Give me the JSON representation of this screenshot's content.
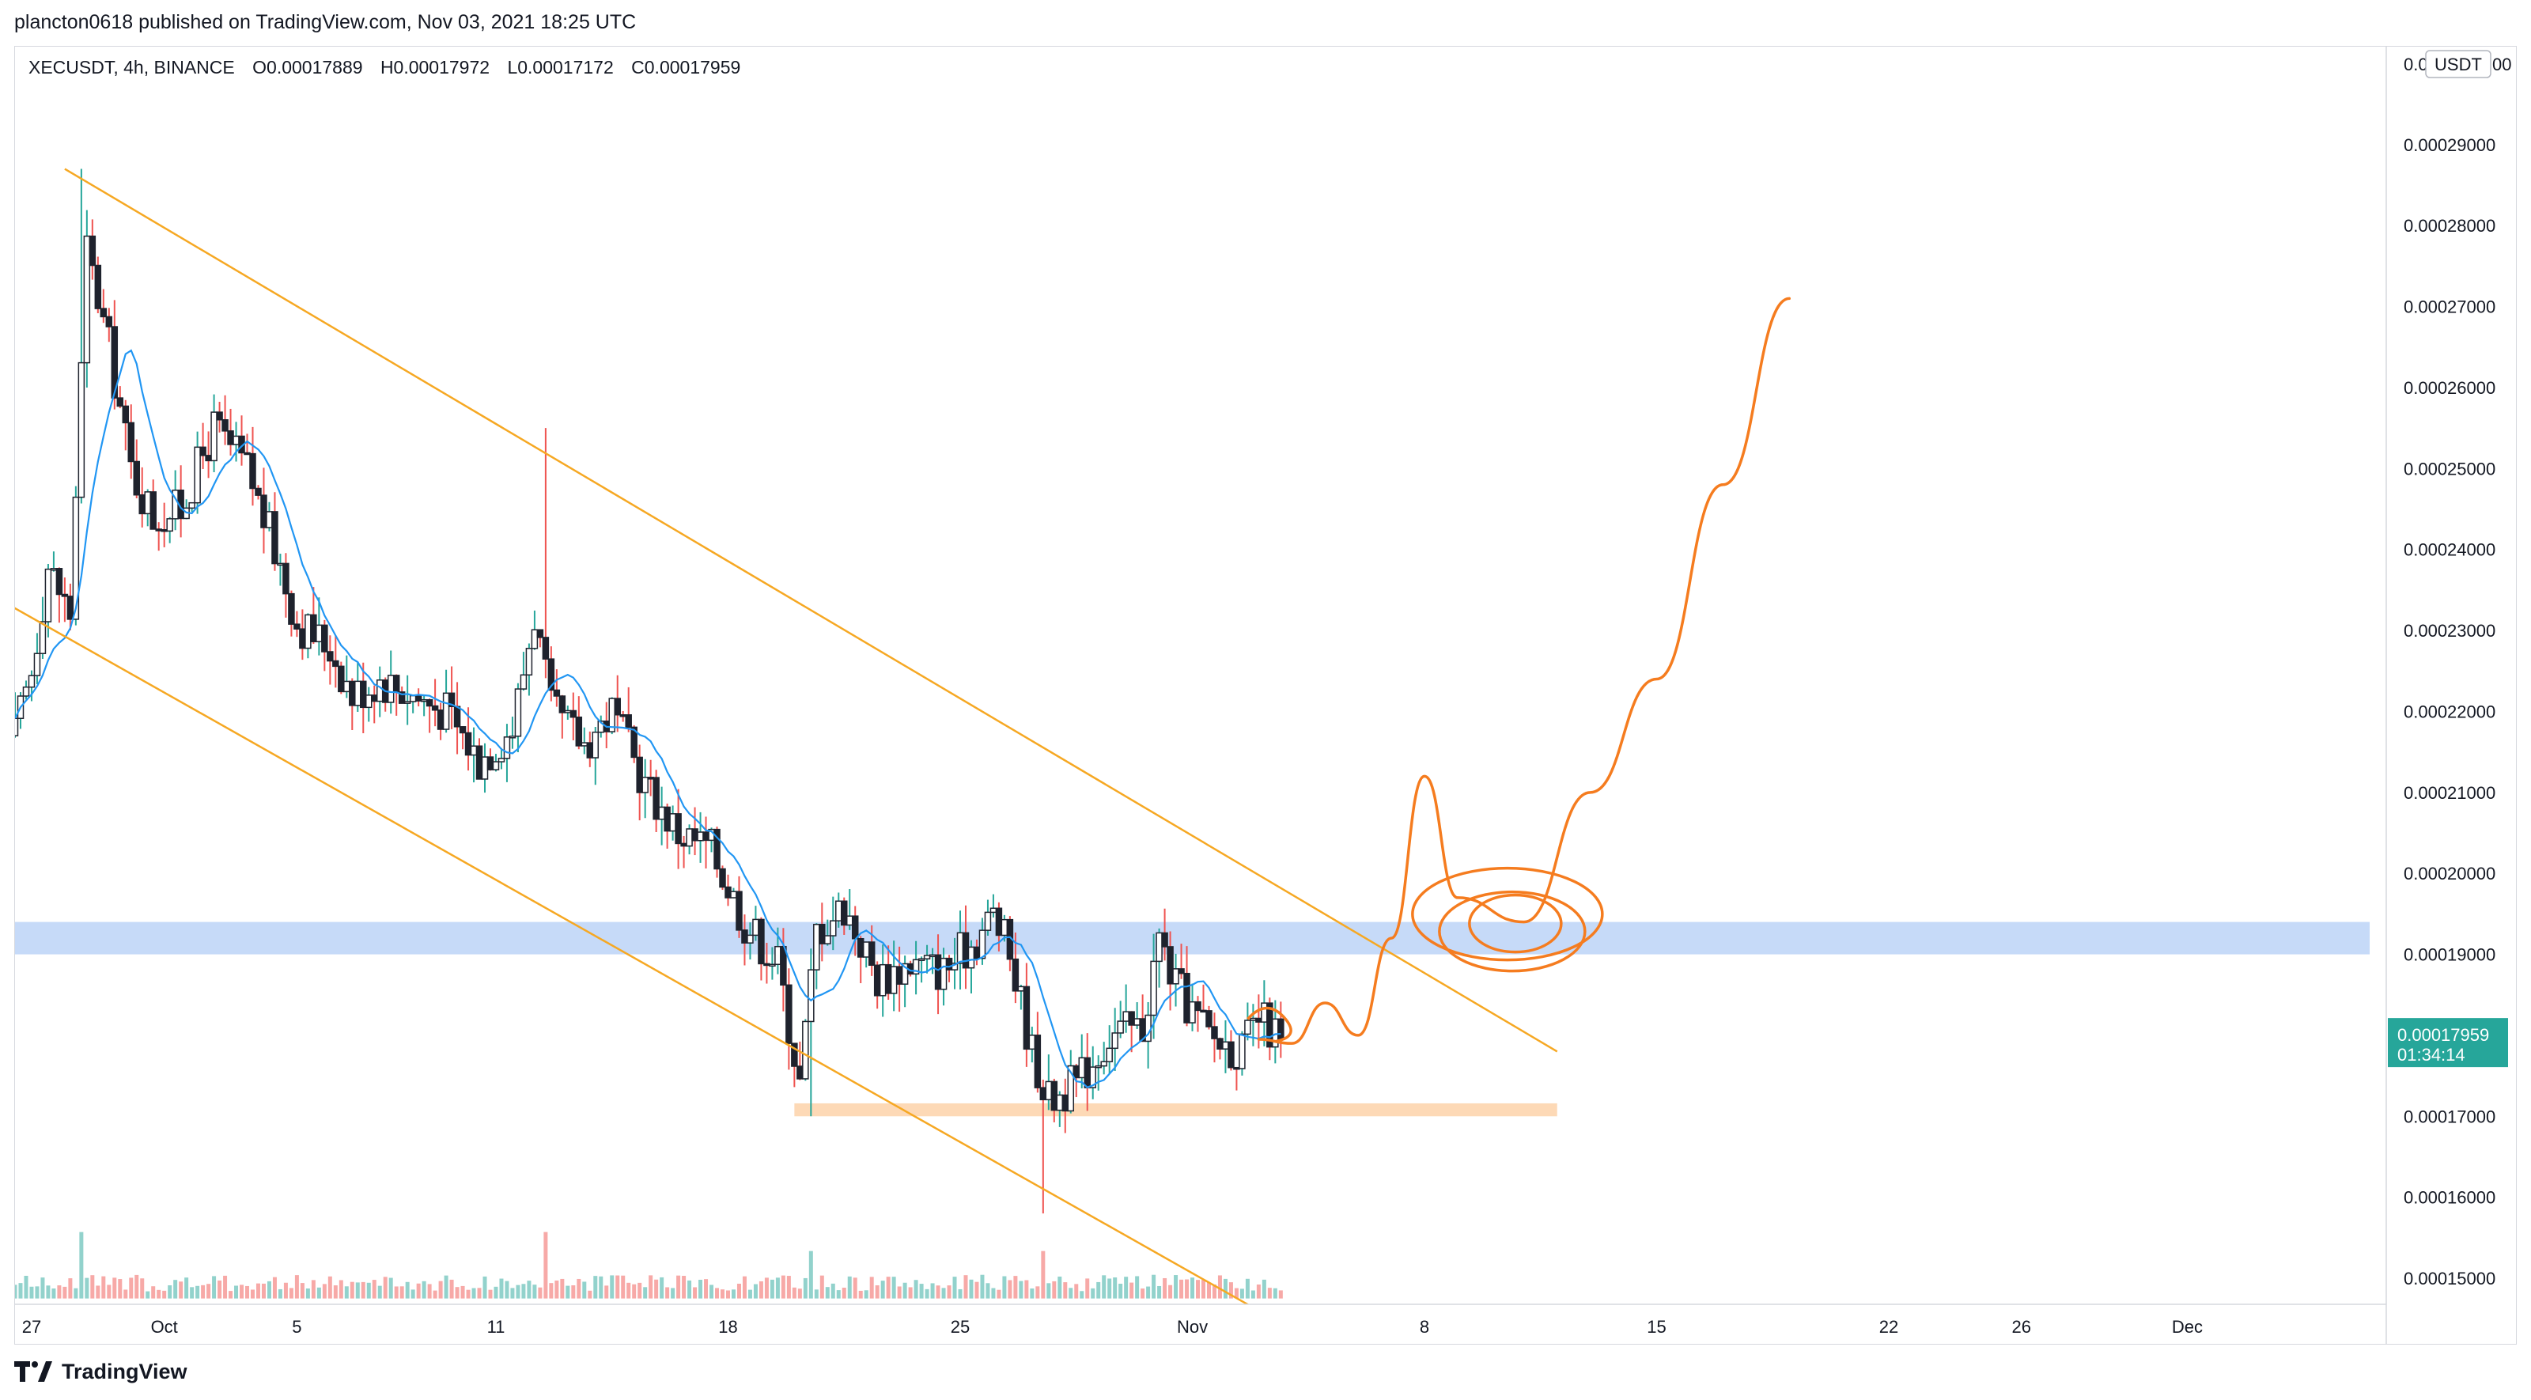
{
  "header": {
    "publisher": "plancton0618 published on TradingView.com, Nov 03, 2021 18:25 UTC"
  },
  "symbol_bar": {
    "symbol": "XECUSDT, 4h, BINANCE",
    "open": "O0.00017889",
    "high": "H0.00017972",
    "low": "L0.00017172",
    "close": "C0.00017959"
  },
  "currency_badge": "USDT",
  "price_badge": {
    "price": "0.00017959",
    "countdown": "01:34:14"
  },
  "footer": {
    "brand": "TradingView"
  },
  "colors": {
    "up": "#26a69a",
    "down": "#ef5350",
    "candle_body": "#1e222d",
    "ma": "#2196f3",
    "channel": "#f6a823",
    "projection": "#f57c1f",
    "resistance_zone": "#bcd3f7",
    "support_zone": "#fdd5ae",
    "badge": "#26a69a"
  },
  "chart_data": {
    "type": "candlestick",
    "symbol": "XECUSDT",
    "interval": "4h",
    "exchange": "BINANCE",
    "price_axis": {
      "range": [
        0.000146,
        0.000302
      ],
      "ticks": [
        "0.00015000",
        "0.00016000",
        "0.00017000",
        "0.00018000",
        "0.00019000",
        "0.00020000",
        "0.00021000",
        "0.00022000",
        "0.00023000",
        "0.00024000",
        "0.00025000",
        "0.00026000",
        "0.00027000",
        "0.00028000",
        "0.00029000"
      ],
      "top_label": "0.0",
      "top_label_suffix": "00"
    },
    "time_axis": {
      "labels": [
        "27",
        "Oct",
        "5",
        "11",
        "18",
        "25",
        "Nov",
        "8",
        "15",
        "22",
        "26",
        "Dec"
      ],
      "label_dates": [
        "2021-09-27",
        "2021-10-01",
        "2021-10-05",
        "2021-10-11",
        "2021-10-18",
        "2021-10-25",
        "2021-11-01",
        "2021-11-08",
        "2021-11-15",
        "2021-11-22",
        "2021-11-26",
        "2021-12-01"
      ],
      "start": "2021-09-26T12:00",
      "end": "2021-12-07T00:00"
    },
    "series": [
      {
        "name": "price",
        "kind": "ohlc",
        "bars_per_day": 6,
        "first_bar": "2021-09-26T12:00",
        "last_bar": "2021-11-03T16:00",
        "last_close": 0.00017959
      },
      {
        "name": "moving average",
        "kind": "line",
        "color": "#2196f3"
      },
      {
        "name": "volume",
        "kind": "histogram"
      }
    ],
    "key_points": [
      {
        "date": "2021-09-28",
        "value": 0.000287,
        "note": "all-time high wick"
      },
      {
        "date": "2021-10-12",
        "value": 0.000255,
        "note": "upper wick"
      },
      {
        "date": "2021-10-20",
        "value": 0.00017,
        "note": "local low"
      },
      {
        "date": "2021-10-27",
        "value": 0.000158,
        "note": "lowest wick"
      },
      {
        "date": "2021-11-03",
        "value": 0.00017959,
        "note": "last close"
      }
    ],
    "annotations": {
      "descending_channel_upper": [
        [
          "2021-09-28",
          0.000287
        ],
        [
          "2021-11-12",
          0.000178
        ]
      ],
      "descending_channel_lower": [
        [
          "2021-09-26",
          0.000235
        ],
        [
          "2021-11-03",
          0.000146
        ]
      ],
      "resistance_zone": {
        "from": 0.00019,
        "to": 0.000194,
        "start": "2021-09-26"
      },
      "support_zone": {
        "from": 0.00017,
        "to": 0.0001716,
        "start": "2021-10-20",
        "end": "2021-11-12"
      },
      "projection_path": [
        [
          "2021-11-03",
          0.0001795
        ],
        [
          "2021-11-04",
          0.000179
        ],
        [
          "2021-11-05",
          0.000184
        ],
        [
          "2021-11-06",
          0.00018
        ],
        [
          "2021-11-07",
          0.000192
        ],
        [
          "2021-11-08",
          0.000212
        ],
        [
          "2021-11-09",
          0.000197
        ],
        [
          "2021-11-11",
          0.000194
        ],
        [
          "2021-11-13",
          0.00021
        ],
        [
          "2021-11-15",
          0.000224
        ],
        [
          "2021-11-17",
          0.000248
        ],
        [
          "2021-11-19",
          0.000271
        ]
      ]
    }
  }
}
